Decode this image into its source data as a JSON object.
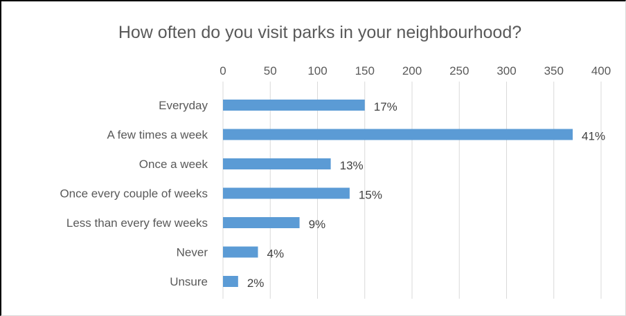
{
  "chart_data": {
    "type": "bar",
    "orientation": "horizontal",
    "title": "How often do you visit parks in your neighbourhood?",
    "xlim": [
      0,
      400
    ],
    "x_ticks": [
      0,
      50,
      100,
      150,
      200,
      250,
      300,
      350,
      400
    ],
    "x_axis_position": "top",
    "grid": true,
    "categories": [
      "Everyday",
      "A few times a week",
      "Once a week",
      "Once every couple of weeks",
      "Less than every few weeks",
      "Never",
      "Unsure"
    ],
    "values": [
      150,
      370,
      114,
      134,
      81,
      37,
      16
    ],
    "data_labels": [
      "17%",
      "41%",
      "13%",
      "15%",
      "9%",
      "4%",
      "2%"
    ],
    "bar_color": "#5b9bd5"
  }
}
